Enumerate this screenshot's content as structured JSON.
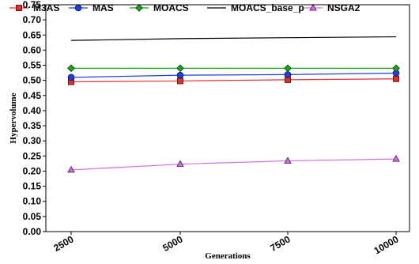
{
  "chart_data": {
    "type": "line",
    "xlabel": "Generations",
    "ylabel": "Hypervolume",
    "x": [
      2500,
      5000,
      7500,
      10000
    ],
    "x_tick_labels": [
      "2500",
      "5000",
      "7500",
      "10000"
    ],
    "ylim": [
      0.0,
      0.75
    ],
    "y_ticks": [
      "0.00",
      "0.05",
      "0.10",
      "0.15",
      "0.20",
      "0.25",
      "0.30",
      "0.35",
      "0.40",
      "0.45",
      "0.50",
      "0.55",
      "0.60",
      "0.65",
      "0.70",
      "0.75"
    ],
    "grid": false,
    "legend_position": "top",
    "series": [
      {
        "name": "M3AS",
        "values": [
          0.495,
          0.498,
          0.502,
          0.505
        ],
        "color": "#e03030",
        "marker": "square"
      },
      {
        "name": "MAS",
        "values": [
          0.51,
          0.517,
          0.519,
          0.524
        ],
        "color": "#2040e0",
        "marker": "circle"
      },
      {
        "name": "MOACS",
        "values": [
          0.54,
          0.54,
          0.54,
          0.54
        ],
        "color": "#22a022",
        "marker": "diamond"
      },
      {
        "name": "MOACS_base_p",
        "values": [
          0.632,
          0.638,
          0.641,
          0.644
        ],
        "color": "#000000",
        "marker": "none"
      },
      {
        "name": "NSGA2",
        "values": [
          0.204,
          0.223,
          0.234,
          0.24
        ],
        "color": "#d070e0",
        "marker": "triangle"
      }
    ]
  }
}
